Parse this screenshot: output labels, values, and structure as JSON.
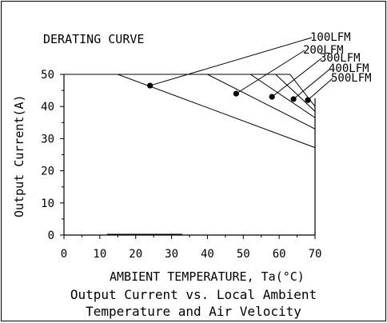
{
  "chart_data": {
    "type": "line",
    "title": "DERATING CURVE",
    "xlabel": "AMBIENT TEMPERATURE, Ta(°C)",
    "ylabel": "Output Current(A)",
    "caption_lines": [
      "Output Current vs. Local Ambient",
      "Temperature and Air Velocity"
    ],
    "xlim": [
      0,
      70
    ],
    "ylim": [
      0,
      50
    ],
    "x_ticks": [
      "0",
      "10",
      "20",
      "30",
      "40",
      "50",
      "60",
      "70"
    ],
    "y_ticks": [
      "0",
      "10",
      "20",
      "30",
      "40",
      "50"
    ],
    "series": [
      {
        "name": "100LFM",
        "x": [
          0,
          15,
          70
        ],
        "y": [
          50,
          50,
          27.2
        ],
        "marker": {
          "x": 24,
          "y": 46.5
        }
      },
      {
        "name": "200LFM",
        "x": [
          0,
          40,
          70
        ],
        "y": [
          50,
          50,
          33
        ],
        "marker": {
          "x": 48,
          "y": 44
        }
      },
      {
        "name": "300LFM",
        "x": [
          0,
          52,
          70
        ],
        "y": [
          50,
          50,
          36.5
        ],
        "marker": {
          "x": 58,
          "y": 43
        }
      },
      {
        "name": "400LFM",
        "x": [
          0,
          59,
          70
        ],
        "y": [
          50,
          50,
          38.5
        ],
        "marker": {
          "x": 64,
          "y": 42.3
        }
      },
      {
        "name": "500LFM",
        "x": [
          0,
          63,
          70
        ],
        "y": [
          50,
          50,
          40
        ],
        "marker": {
          "x": 68,
          "y": 42
        }
      }
    ],
    "legend": "top-right, leader lines to markers",
    "grid": false
  }
}
